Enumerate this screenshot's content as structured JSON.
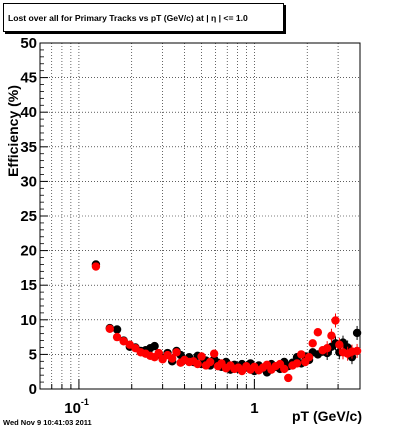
{
  "title": "Lost over all for Primary Tracks vs pT (GeV/c) at |   η | <= 1.0",
  "footer": "Wed Nov  9 10:41:03 2011",
  "chart_data": {
    "type": "scatter",
    "title": "Lost over all for Primary Tracks vs pT (GeV/c) at |   η | <= 1.0",
    "xlabel": "pT (GeV/c)",
    "ylabel": "Efficiency (%)",
    "xscale": "log",
    "xlim": [
      0.06,
      4.0
    ],
    "ylim": [
      0,
      50
    ],
    "grid": true,
    "x_tick_labels": [
      {
        "value": 0.1,
        "base": "10",
        "exp": "-1"
      },
      {
        "value": 1,
        "base": "1",
        "exp": ""
      }
    ],
    "y_ticks": [
      0,
      5,
      10,
      15,
      20,
      25,
      30,
      35,
      40,
      45,
      50
    ],
    "colors": {
      "series_black": "#000000",
      "series_red": "#ff0000",
      "grid": "#000000"
    },
    "series": [
      {
        "color": "#000000",
        "points": [
          {
            "x": 0.125,
            "y": 18.0
          },
          {
            "x": 0.15,
            "y": 8.8
          },
          {
            "x": 0.165,
            "y": 8.6
          },
          {
            "x": 0.18,
            "y": 7.0
          },
          {
            "x": 0.195,
            "y": 6.1
          },
          {
            "x": 0.21,
            "y": 6.0
          },
          {
            "x": 0.225,
            "y": 5.5
          },
          {
            "x": 0.24,
            "y": 5.6
          },
          {
            "x": 0.255,
            "y": 5.9
          },
          {
            "x": 0.27,
            "y": 6.2
          },
          {
            "x": 0.285,
            "y": 5.0
          },
          {
            "x": 0.3,
            "y": 4.5
          },
          {
            "x": 0.32,
            "y": 5.2
          },
          {
            "x": 0.34,
            "y": 4.0
          },
          {
            "x": 0.36,
            "y": 5.5
          },
          {
            "x": 0.38,
            "y": 4.9
          },
          {
            "x": 0.4,
            "y": 4.2
          },
          {
            "x": 0.425,
            "y": 4.6
          },
          {
            "x": 0.45,
            "y": 3.9
          },
          {
            "x": 0.475,
            "y": 4.8
          },
          {
            "x": 0.5,
            "y": 3.6
          },
          {
            "x": 0.53,
            "y": 4.1
          },
          {
            "x": 0.56,
            "y": 3.4
          },
          {
            "x": 0.59,
            "y": 4.3
          },
          {
            "x": 0.62,
            "y": 3.8
          },
          {
            "x": 0.65,
            "y": 3.2
          },
          {
            "x": 0.69,
            "y": 3.9
          },
          {
            "x": 0.73,
            "y": 2.8
          },
          {
            "x": 0.77,
            "y": 3.5
          },
          {
            "x": 0.81,
            "y": 2.9
          },
          {
            "x": 0.85,
            "y": 3.6
          },
          {
            "x": 0.9,
            "y": 3.1
          },
          {
            "x": 0.95,
            "y": 3.7
          },
          {
            "x": 1.0,
            "y": 2.6
          },
          {
            "x": 1.06,
            "y": 3.4
          },
          {
            "x": 1.12,
            "y": 3.0
          },
          {
            "x": 1.18,
            "y": 2.4
          },
          {
            "x": 1.25,
            "y": 3.6
          },
          {
            "x": 1.32,
            "y": 3.2
          },
          {
            "x": 1.4,
            "y": 2.9
          },
          {
            "x": 1.48,
            "y": 3.9
          },
          {
            "x": 1.56,
            "y": 3.3
          },
          {
            "x": 1.65,
            "y": 3.8
          },
          {
            "x": 1.75,
            "y": 4.6
          },
          {
            "x": 1.85,
            "y": 3.7
          },
          {
            "x": 1.95,
            "y": 4.7
          },
          {
            "x": 2.05,
            "y": 4.2
          },
          {
            "x": 2.15,
            "y": 5.3
          },
          {
            "x": 2.3,
            "y": 5.0
          },
          {
            "x": 2.45,
            "y": 5.4
          },
          {
            "x": 2.6,
            "y": 5.2
          },
          {
            "x": 2.75,
            "y": 6.1
          },
          {
            "x": 2.9,
            "y": 6.6
          },
          {
            "x": 3.05,
            "y": 5.3
          },
          {
            "x": 3.2,
            "y": 6.7
          },
          {
            "x": 3.4,
            "y": 6.0
          },
          {
            "x": 3.6,
            "y": 4.6
          },
          {
            "x": 3.85,
            "y": 8.1
          }
        ]
      },
      {
        "color": "#ff0000",
        "points": [
          {
            "x": 0.125,
            "y": 17.7
          },
          {
            "x": 0.15,
            "y": 8.7
          },
          {
            "x": 0.165,
            "y": 7.5
          },
          {
            "x": 0.18,
            "y": 6.9
          },
          {
            "x": 0.195,
            "y": 6.4
          },
          {
            "x": 0.21,
            "y": 5.9
          },
          {
            "x": 0.225,
            "y": 5.3
          },
          {
            "x": 0.24,
            "y": 5.1
          },
          {
            "x": 0.255,
            "y": 4.8
          },
          {
            "x": 0.27,
            "y": 4.6
          },
          {
            "x": 0.285,
            "y": 5.2
          },
          {
            "x": 0.3,
            "y": 4.3
          },
          {
            "x": 0.32,
            "y": 4.9
          },
          {
            "x": 0.34,
            "y": 4.4
          },
          {
            "x": 0.36,
            "y": 5.3
          },
          {
            "x": 0.38,
            "y": 3.8
          },
          {
            "x": 0.4,
            "y": 4.2
          },
          {
            "x": 0.425,
            "y": 3.9
          },
          {
            "x": 0.45,
            "y": 4.0
          },
          {
            "x": 0.475,
            "y": 3.6
          },
          {
            "x": 0.5,
            "y": 4.7
          },
          {
            "x": 0.53,
            "y": 3.4
          },
          {
            "x": 0.56,
            "y": 3.9
          },
          {
            "x": 0.59,
            "y": 5.1
          },
          {
            "x": 0.62,
            "y": 3.3
          },
          {
            "x": 0.65,
            "y": 3.7
          },
          {
            "x": 0.69,
            "y": 3.0
          },
          {
            "x": 0.73,
            "y": 3.4
          },
          {
            "x": 0.77,
            "y": 2.9
          },
          {
            "x": 0.81,
            "y": 3.1
          },
          {
            "x": 0.85,
            "y": 2.6
          },
          {
            "x": 0.9,
            "y": 3.3
          },
          {
            "x": 0.95,
            "y": 2.8
          },
          {
            "x": 1.0,
            "y": 3.2
          },
          {
            "x": 1.06,
            "y": 2.7
          },
          {
            "x": 1.12,
            "y": 3.1
          },
          {
            "x": 1.18,
            "y": 3.5
          },
          {
            "x": 1.25,
            "y": 2.8
          },
          {
            "x": 1.32,
            "y": 3.3
          },
          {
            "x": 1.4,
            "y": 3.6
          },
          {
            "x": 1.48,
            "y": 2.9
          },
          {
            "x": 1.56,
            "y": 1.6
          },
          {
            "x": 1.65,
            "y": 3.4
          },
          {
            "x": 1.75,
            "y": 3.7
          },
          {
            "x": 1.85,
            "y": 5.0
          },
          {
            "x": 1.95,
            "y": 3.9
          },
          {
            "x": 2.05,
            "y": 4.6
          },
          {
            "x": 2.15,
            "y": 6.6
          },
          {
            "x": 2.3,
            "y": 8.2
          },
          {
            "x": 2.45,
            "y": 5.6
          },
          {
            "x": 2.6,
            "y": 5.9
          },
          {
            "x": 2.75,
            "y": 7.7
          },
          {
            "x": 2.9,
            "y": 9.9
          },
          {
            "x": 3.05,
            "y": 6.4
          },
          {
            "x": 3.2,
            "y": 5.3
          },
          {
            "x": 3.4,
            "y": 5.1
          },
          {
            "x": 3.6,
            "y": 5.4
          },
          {
            "x": 3.85,
            "y": 5.5
          }
        ]
      }
    ]
  }
}
